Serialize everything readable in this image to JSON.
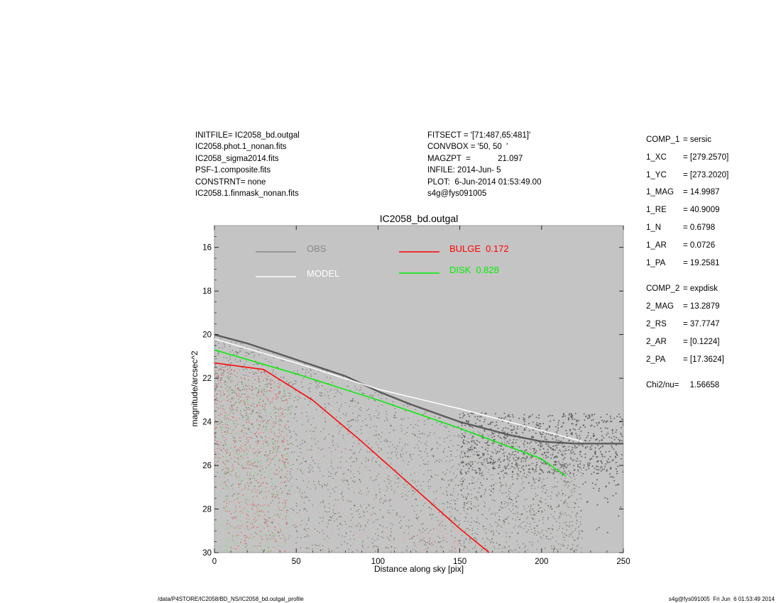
{
  "header_left": [
    "INITFILE= IC2058_bd.outgal",
    "IC2058.phot.1_nonan.fits",
    "IC2058_sigma2014.fits",
    "PSF-1.composite.fits",
    "CONSTRNT= none",
    "IC2058.1.finmask_nonan.fits"
  ],
  "header_mid": [
    "FITSECT = '[71:487,65:481]'",
    "CONVBOX = '50, 50  '",
    "MAGZPT  =            21.097",
    "INFILE: 2014-Jun- 5",
    "PLOT:  6-Jun-2014 01:53:49.00",
    "s4g@fys091005"
  ],
  "params": [
    {
      "key": "COMP_1",
      "value": "= sersic",
      "gap_before": false
    },
    {
      "key": "1_XC",
      "value": "= [279.2570]",
      "gap_before": false
    },
    {
      "key": "1_YC",
      "value": "= [273.2020]",
      "gap_before": false
    },
    {
      "key": "1_MAG",
      "value": "= 14.9987",
      "gap_before": false
    },
    {
      "key": "1_RE",
      "value": "= 40.9009",
      "gap_before": false
    },
    {
      "key": "1_N",
      "value": "= 0.6798",
      "gap_before": false
    },
    {
      "key": "1_AR",
      "value": "= 0.0726",
      "gap_before": false
    },
    {
      "key": "1_PA",
      "value": "= 19.2581",
      "gap_before": false
    },
    {
      "key": "COMP_2",
      "value": "= expdisk",
      "gap_before": true
    },
    {
      "key": "2_MAG",
      "value": "= 13.2879",
      "gap_before": false
    },
    {
      "key": "2_RS",
      "value": "= 37.7747",
      "gap_before": false
    },
    {
      "key": "2_AR",
      "value": "= [0.1224]",
      "gap_before": false
    },
    {
      "key": "2_PA",
      "value": "= [17.3624]",
      "gap_before": false
    },
    {
      "key": "Chi2/nu=",
      "value": "   1.56658",
      "gap_before": true
    }
  ],
  "footer": {
    "left": "/data/P4STORE/IC2058/BD_NS/IC2058_bd.outgal_profile",
    "right": "s4g@fys091005  Fri Jun  6 01:53:49 2014"
  },
  "colors": {
    "plot_bg": "#c4c4c4",
    "obs": "#555555",
    "model": "#ffffff",
    "bulge": "#ff0000",
    "disk": "#00ee00"
  },
  "chart_data": {
    "type": "scatter",
    "title": "IC2058_bd.outgal",
    "xlabel": "Distance along sky [pix]",
    "ylabel": "magnitude/arcsec^2",
    "xlim": [
      0,
      250
    ],
    "ylim": [
      30,
      15
    ],
    "y_inverted": true,
    "xticks": [
      0,
      50,
      100,
      150,
      200,
      250
    ],
    "yticks": [
      16,
      18,
      20,
      22,
      24,
      26,
      28,
      30
    ],
    "grid": false,
    "legend": [
      {
        "label": "OBS",
        "color": "#888888",
        "text_color": "#888888"
      },
      {
        "label": "MODEL",
        "color": "#ffffff",
        "text_color": "#ffffff"
      },
      {
        "label": "BULGE",
        "value": "0.172",
        "color": "#ff0000",
        "text_color": "#ff0000"
      },
      {
        "label": "DISK",
        "value": "0.828",
        "color": "#00ee00",
        "text_color": "#00ee00"
      }
    ],
    "series": [
      {
        "name": "OBS",
        "x": [
          0,
          20,
          40,
          60,
          80,
          100,
          120,
          150,
          180,
          200,
          220,
          250
        ],
        "y": [
          20.0,
          20.4,
          20.9,
          21.4,
          21.9,
          22.6,
          23.2,
          24.0,
          24.6,
          24.9,
          25.0,
          25.0
        ]
      },
      {
        "name": "MODEL",
        "x": [
          0,
          50,
          100,
          150,
          200,
          225
        ],
        "y": [
          20.2,
          21.3,
          22.5,
          23.4,
          24.4,
          24.9
        ]
      },
      {
        "name": "BULGE",
        "x": [
          0,
          30,
          60,
          90,
          120,
          150,
          168
        ],
        "y": [
          21.3,
          21.6,
          23.0,
          24.9,
          26.9,
          28.9,
          30.0
        ]
      },
      {
        "name": "DISK",
        "x": [
          0,
          50,
          100,
          150,
          200,
          215
        ],
        "y": [
          20.7,
          21.8,
          23.0,
          24.3,
          25.7,
          26.5
        ]
      }
    ]
  }
}
